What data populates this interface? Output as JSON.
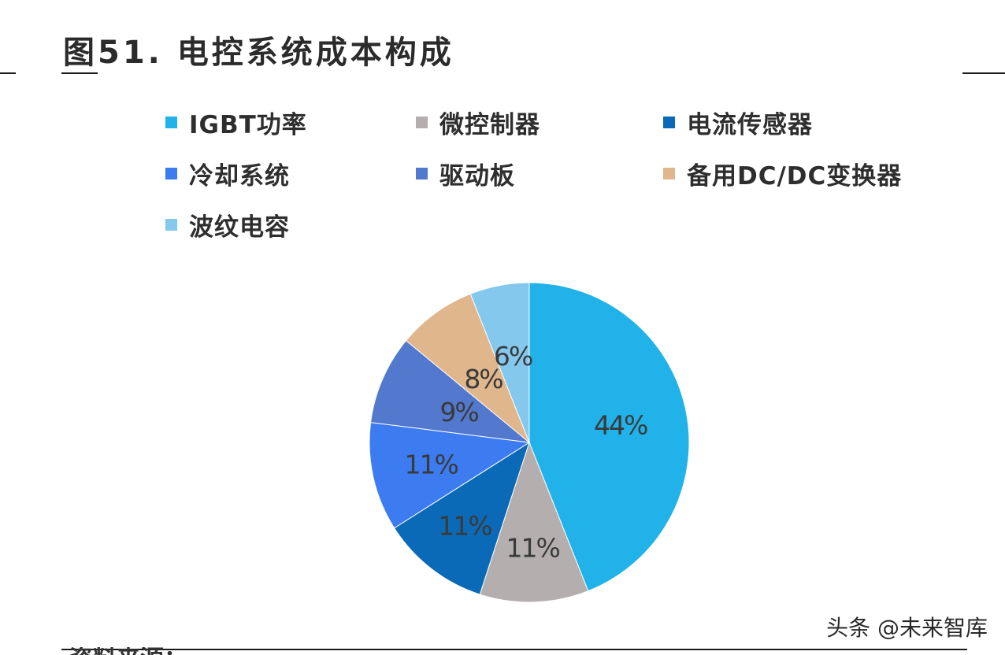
{
  "figure": {
    "title": "图51. 电控系统成本构成"
  },
  "chart_data": {
    "type": "pie",
    "title": "图51. 电控系统成本构成",
    "legend_position": "top",
    "slices": [
      {
        "name": "IGBT功率",
        "value": 44,
        "label": "44%",
        "color": "#20B2E8"
      },
      {
        "name": "微控制器",
        "value": 11,
        "label": "11%",
        "color": "#B4AEAE"
      },
      {
        "name": "电流传感器",
        "value": 11,
        "label": "11%",
        "color": "#0A6AB8"
      },
      {
        "name": "冷却系统",
        "value": 11,
        "label": "11%",
        "color": "#3D7BF0"
      },
      {
        "name": "驱动板",
        "value": 9,
        "label": "9%",
        "color": "#5279CE"
      },
      {
        "name": "备用DC/DC变换器",
        "value": 8,
        "label": "8%",
        "color": "#E0B68C"
      },
      {
        "name": "波纹电容",
        "value": 6,
        "label": "6%",
        "color": "#84C8EE"
      }
    ]
  },
  "watermark": {
    "text": "头条 @未来智库"
  },
  "footer": {
    "partial_text": "资料来源：…"
  }
}
